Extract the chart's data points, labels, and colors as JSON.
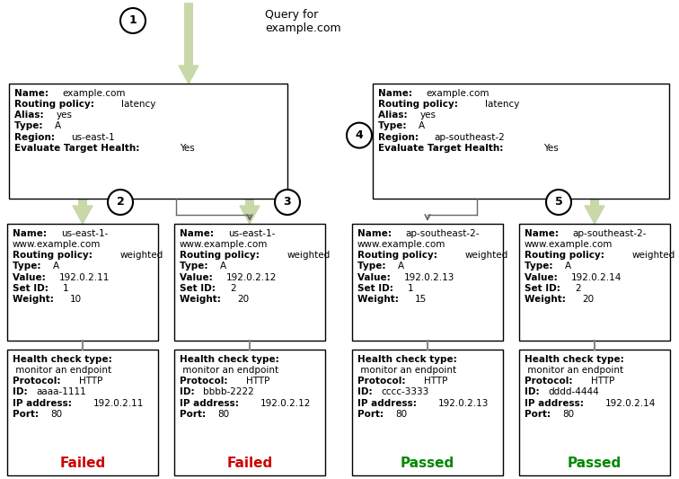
{
  "bg_color": "#ffffff",
  "title_text": "Query for\nexample.com",
  "arrow_color": "#c8d8a8",
  "line_color": "#666666",
  "top_boxes": [
    {
      "lines": [
        [
          "Name: ",
          "example.com"
        ],
        [
          "Routing policy: ",
          "latency"
        ],
        [
          "Alias: ",
          "yes"
        ],
        [
          "Type: ",
          "A"
        ],
        [
          "Region: ",
          "us-east-1"
        ],
        [
          "Evaluate Target Health: ",
          "Yes"
        ]
      ]
    },
    {
      "lines": [
        [
          "Name: ",
          "example.com"
        ],
        [
          "Routing policy: ",
          "latency"
        ],
        [
          "Alias: ",
          "yes"
        ],
        [
          "Type: ",
          "A"
        ],
        [
          "Region: ",
          "ap-southeast-2"
        ],
        [
          "Evaluate Target Health: ",
          "Yes"
        ]
      ]
    }
  ],
  "mid_boxes": [
    {
      "lines": [
        [
          "Name: ",
          "us-east-1-"
        ],
        [
          "",
          "www.example.com"
        ],
        [
          "Routing policy: ",
          "weighted"
        ],
        [
          "Type: ",
          "A"
        ],
        [
          "Value: ",
          "192.0.2.11"
        ],
        [
          "Set ID: ",
          "1"
        ],
        [
          "Weight: ",
          "10"
        ]
      ]
    },
    {
      "lines": [
        [
          "Name: ",
          "us-east-1-"
        ],
        [
          "",
          "www.example.com"
        ],
        [
          "Routing policy: ",
          "weighted"
        ],
        [
          "Type: ",
          "A"
        ],
        [
          "Value: ",
          "192.0.2.12"
        ],
        [
          "Set ID: ",
          "2"
        ],
        [
          "Weight: ",
          "20"
        ]
      ]
    },
    {
      "lines": [
        [
          "Name: ",
          "ap-southeast-2-"
        ],
        [
          "",
          "www.example.com"
        ],
        [
          "Routing policy: ",
          "weighted"
        ],
        [
          "Type: ",
          "A"
        ],
        [
          "Value: ",
          "192.0.2.13"
        ],
        [
          "Set ID: ",
          "1"
        ],
        [
          "Weight: ",
          "15"
        ]
      ]
    },
    {
      "lines": [
        [
          "Name: ",
          "ap-southeast-2-"
        ],
        [
          "",
          "www.example.com"
        ],
        [
          "Routing policy: ",
          "weighted"
        ],
        [
          "Type: ",
          "A"
        ],
        [
          "Value: ",
          "192.0.2.14"
        ],
        [
          "Set ID: ",
          "2"
        ],
        [
          "Weight: ",
          "20"
        ]
      ]
    }
  ],
  "health_boxes": [
    {
      "lines": [
        [
          "Health check type:",
          ""
        ],
        [
          "",
          " monitor an endpoint"
        ],
        [
          "Protocol: ",
          "HTTP"
        ],
        [
          "ID: ",
          "aaaa-1111"
        ],
        [
          "IP address: ",
          "192.0.2.11"
        ],
        [
          "Port: ",
          "80"
        ]
      ],
      "status": "Failed",
      "status_color": "#cc0000"
    },
    {
      "lines": [
        [
          "Health check type:",
          ""
        ],
        [
          "",
          " monitor an endpoint"
        ],
        [
          "Protocol: ",
          "HTTP"
        ],
        [
          "ID: ",
          "bbbb-2222"
        ],
        [
          "IP address: ",
          "192.0.2.12"
        ],
        [
          "Port: ",
          "80"
        ]
      ],
      "status": "Failed",
      "status_color": "#cc0000"
    },
    {
      "lines": [
        [
          "Health check type:",
          ""
        ],
        [
          "",
          " monitor an endpoint"
        ],
        [
          "Protocol: ",
          "HTTP"
        ],
        [
          "ID: ",
          "cccc-3333"
        ],
        [
          "IP address: ",
          "192.0.2.13"
        ],
        [
          "Port: ",
          "80"
        ]
      ],
      "status": "Passed",
      "status_color": "#008800"
    },
    {
      "lines": [
        [
          "Health check type:",
          ""
        ],
        [
          "",
          " monitor an endpoint"
        ],
        [
          "Protocol: ",
          "HTTP"
        ],
        [
          "ID: ",
          "dddd-4444"
        ],
        [
          "IP address: ",
          "192.0.2.14"
        ],
        [
          "Port: ",
          "80"
        ]
      ],
      "status": "Passed",
      "status_color": "#008800"
    }
  ]
}
